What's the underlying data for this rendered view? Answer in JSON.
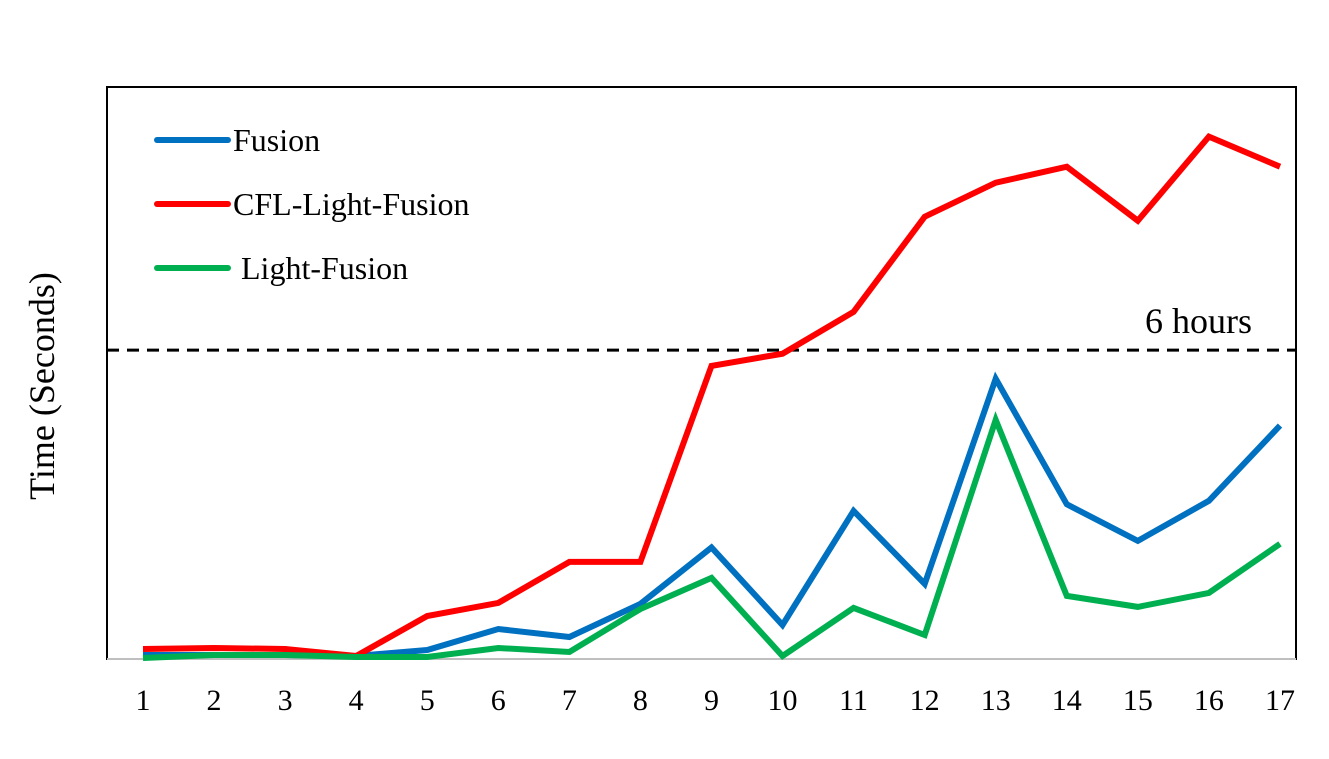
{
  "chart_data": {
    "type": "line",
    "title": "",
    "xlabel": "",
    "ylabel": "Time (Seconds)",
    "x": [
      1,
      2,
      3,
      4,
      5,
      6,
      7,
      8,
      9,
      10,
      11,
      12,
      13,
      14,
      15,
      16,
      17
    ],
    "x_tick_labels": [
      "1",
      "2",
      "3",
      "4",
      "5",
      "6",
      "7",
      "8",
      "9",
      "10",
      "11",
      "12",
      "13",
      "14",
      "15",
      "16",
      "17"
    ],
    "ylim": [
      0,
      40000
    ],
    "y_tick_labels_shown": false,
    "grid": false,
    "legend_position": "top-left",
    "series": [
      {
        "name": "Fusion",
        "color": "#0070C0",
        "values": [
          280,
          280,
          280,
          210,
          630,
          2100,
          1540,
          3850,
          7800,
          2380,
          10360,
          5250,
          19600,
          10820,
          8260,
          11060,
          16320
        ]
      },
      {
        "name": "CFL-Light-Fusion",
        "color": "#FF0000",
        "values": [
          700,
          770,
          700,
          210,
          3010,
          3920,
          6790,
          6790,
          20500,
          21350,
          24280,
          30930,
          33310,
          34430,
          30650,
          36530,
          34430
        ]
      },
      {
        "name": " Light-Fusion",
        "color": "#00B050",
        "values": [
          70,
          280,
          280,
          140,
          140,
          770,
          490,
          3500,
          5670,
          210,
          3570,
          1680,
          16730,
          4410,
          3640,
          4620,
          8050
        ]
      }
    ],
    "reference_lines": [
      {
        "label": "6 hours",
        "value": 21600,
        "color": "#000000",
        "style": "dashed"
      }
    ]
  }
}
